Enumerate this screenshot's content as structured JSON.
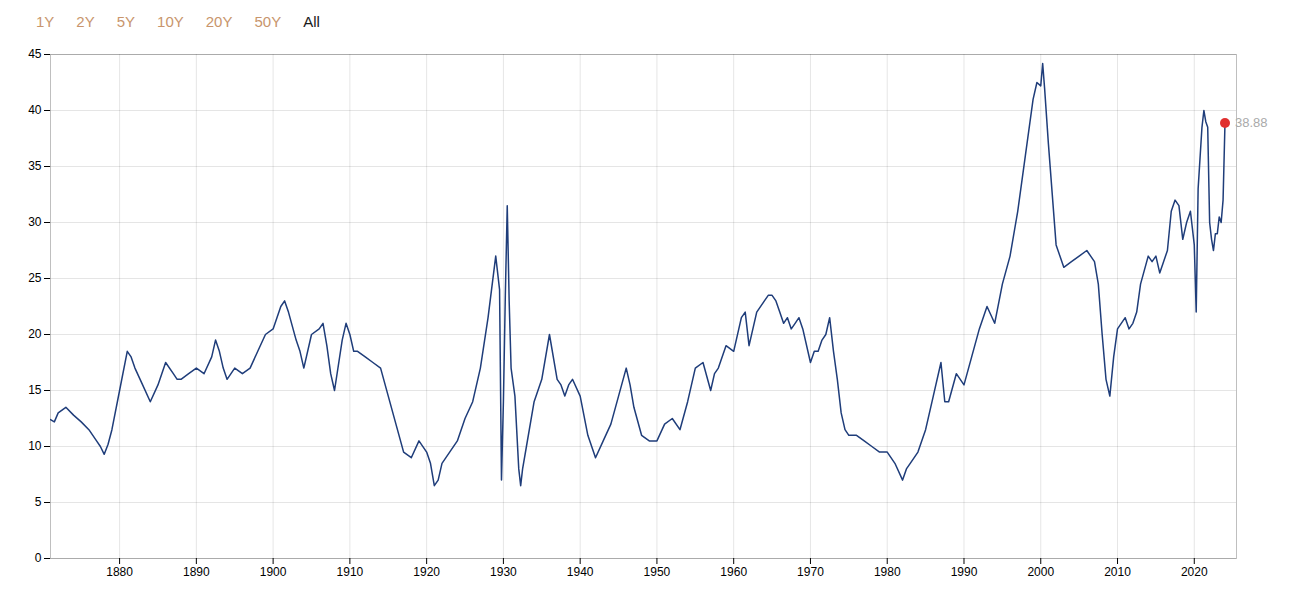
{
  "chart_data": {
    "type": "line",
    "color": "#1f3d7a",
    "xlim": [
      1871.0,
      2025.5
    ],
    "xticks": [
      1880,
      1890,
      1900,
      1910,
      1920,
      1930,
      1940,
      1950,
      1960,
      1970,
      1980,
      1990,
      2000,
      2010,
      2020
    ],
    "ylim": [
      0,
      45
    ],
    "yticks": [
      0,
      5,
      10,
      15,
      20,
      25,
      30,
      35,
      40,
      45
    ],
    "grid": true,
    "annotations": [
      {
        "text": "1Y",
        "color": "#c8956c"
      },
      {
        "text": "2Y",
        "color": "#c8956c"
      },
      {
        "text": "5Y",
        "color": "#c8956c"
      },
      {
        "text": "10Y",
        "color": "#c8956c"
      },
      {
        "text": "20Y",
        "color": "#c8956c"
      },
      {
        "text": "50Y",
        "color": "#c8956c"
      },
      {
        "text": "All",
        "color": "#1a1a1a"
      },
      {
        "text": "38.88",
        "x": 2024.0,
        "y": 38.88,
        "color": "#aaaaaa",
        "marker_color": "#e03030"
      }
    ],
    "x": [
      1871.0,
      1871.5,
      1872.0,
      1873.0,
      1874.0,
      1875.0,
      1876.0,
      1877.0,
      1877.5,
      1878.0,
      1878.5,
      1879.0,
      1880.0,
      1881.0,
      1881.5,
      1882.0,
      1883.0,
      1884.0,
      1885.0,
      1886.0,
      1887.0,
      1887.5,
      1888.0,
      1889.0,
      1890.0,
      1891.0,
      1892.0,
      1892.5,
      1893.0,
      1893.5,
      1894.0,
      1895.0,
      1896.0,
      1897.0,
      1898.0,
      1899.0,
      1900.0,
      1901.0,
      1901.5,
      1902.0,
      1903.0,
      1903.5,
      1904.0,
      1905.0,
      1906.0,
      1906.5,
      1907.0,
      1907.5,
      1908.0,
      1909.0,
      1909.5,
      1910.0,
      1910.5,
      1911.0,
      1912.0,
      1913.0,
      1914.0,
      1915.0,
      1916.0,
      1917.0,
      1918.0,
      1919.0,
      1920.0,
      1920.5,
      1921.0,
      1921.5,
      1922.0,
      1923.0,
      1924.0,
      1925.0,
      1926.0,
      1927.0,
      1928.0,
      1929.0,
      1929.5,
      1929.75,
      1930.0,
      1930.25,
      1930.5,
      1930.75,
      1931.0,
      1931.5,
      1932.0,
      1932.25,
      1932.5,
      1933.0,
      1934.0,
      1935.0,
      1936.0,
      1937.0,
      1937.5,
      1938.0,
      1938.5,
      1939.0,
      1940.0,
      1941.0,
      1942.0,
      1943.0,
      1944.0,
      1945.0,
      1946.0,
      1946.5,
      1947.0,
      1948.0,
      1949.0,
      1950.0,
      1951.0,
      1952.0,
      1953.0,
      1954.0,
      1955.0,
      1956.0,
      1957.0,
      1957.5,
      1958.0,
      1959.0,
      1960.0,
      1961.0,
      1961.5,
      1962.0,
      1963.0,
      1964.0,
      1964.5,
      1965.0,
      1965.5,
      1966.0,
      1966.5,
      1967.0,
      1967.5,
      1968.0,
      1968.5,
      1969.0,
      1970.0,
      1970.5,
      1971.0,
      1971.5,
      1972.0,
      1972.5,
      1973.0,
      1973.5,
      1974.0,
      1974.5,
      1975.0,
      1975.5,
      1976.0,
      1977.0,
      1978.0,
      1979.0,
      1979.5,
      1980.0,
      1981.0,
      1982.0,
      1982.5,
      1983.0,
      1984.0,
      1985.0,
      1986.0,
      1987.0,
      1987.5,
      1988.0,
      1989.0,
      1990.0,
      1991.0,
      1992.0,
      1993.0,
      1994.0,
      1995.0,
      1996.0,
      1997.0,
      1998.0,
      1999.0,
      1999.5,
      2000.0,
      2000.25,
      2000.5,
      2001.0,
      2002.0,
      2003.0,
      2004.0,
      2005.0,
      2006.0,
      2007.0,
      2007.5,
      2008.0,
      2008.5,
      2009.0,
      2009.5,
      2010.0,
      2011.0,
      2011.5,
      2012.0,
      2012.5,
      2013.0,
      2014.0,
      2014.5,
      2015.0,
      2015.5,
      2016.0,
      2016.5,
      2017.0,
      2017.5,
      2018.0,
      2018.5,
      2019.0,
      2019.5,
      2020.0,
      2020.25,
      2020.5,
      2021.0,
      2021.25,
      2021.5,
      2021.75,
      2022.0,
      2022.25,
      2022.5,
      2022.75,
      2023.0,
      2023.25,
      2023.5,
      2023.75,
      2024.0
    ],
    "values": [
      12.4,
      12.2,
      13.0,
      13.5,
      12.8,
      12.2,
      11.5,
      10.5,
      10.0,
      9.3,
      10.2,
      11.5,
      15.0,
      18.5,
      18.0,
      17.0,
      15.5,
      14.0,
      15.5,
      17.5,
      16.5,
      16.0,
      16.0,
      16.5,
      17.0,
      16.5,
      18.0,
      19.5,
      18.5,
      17.0,
      16.0,
      17.0,
      16.5,
      17.0,
      18.5,
      20.0,
      20.5,
      22.5,
      23.0,
      22.0,
      19.5,
      18.5,
      17.0,
      20.0,
      20.5,
      21.0,
      19.0,
      16.5,
      15.0,
      19.5,
      21.0,
      20.0,
      18.5,
      18.5,
      18.0,
      17.5,
      17.0,
      14.5,
      12.0,
      9.5,
      9.0,
      10.5,
      9.5,
      8.5,
      6.5,
      7.0,
      8.5,
      9.5,
      10.5,
      12.5,
      14.0,
      17.0,
      21.5,
      27.0,
      24.0,
      7.0,
      14.0,
      23.5,
      31.5,
      23.0,
      17.0,
      14.5,
      8.0,
      6.5,
      8.0,
      10.0,
      14.0,
      16.0,
      20.0,
      16.0,
      15.5,
      14.5,
      15.5,
      16.0,
      14.5,
      11.0,
      9.0,
      10.5,
      12.0,
      14.5,
      17.0,
      15.5,
      13.5,
      11.0,
      10.5,
      10.5,
      12.0,
      12.5,
      11.5,
      14.0,
      17.0,
      17.5,
      15.0,
      16.5,
      17.0,
      19.0,
      18.5,
      21.5,
      22.0,
      19.0,
      22.0,
      23.0,
      23.5,
      23.5,
      23.0,
      22.0,
      21.0,
      21.5,
      20.5,
      21.0,
      21.5,
      20.5,
      17.5,
      18.5,
      18.5,
      19.5,
      20.0,
      21.5,
      18.5,
      16.0,
      13.0,
      11.5,
      11.0,
      11.0,
      11.0,
      10.5,
      10.0,
      9.5,
      9.5,
      9.5,
      8.5,
      7.0,
      8.0,
      8.5,
      9.5,
      11.5,
      14.5,
      17.5,
      14.0,
      14.0,
      16.5,
      15.5,
      18.0,
      20.5,
      22.5,
      21.0,
      24.5,
      27.0,
      31.0,
      36.0,
      41.0,
      42.5,
      42.2,
      44.2,
      42.0,
      37.0,
      28.0,
      26.0,
      26.5,
      27.0,
      27.5,
      26.5,
      24.5,
      20.0,
      16.0,
      14.5,
      18.0,
      20.5,
      21.5,
      20.5,
      21.0,
      22.0,
      24.5,
      27.0,
      26.5,
      27.0,
      25.5,
      26.5,
      27.5,
      31.0,
      32.0,
      31.5,
      28.5,
      30.0,
      31.0,
      28.0,
      22.0,
      33.0,
      38.5,
      40.0,
      39.0,
      38.5,
      30.0,
      28.5,
      27.5,
      29.0,
      29.0,
      30.5,
      30.0,
      32.0,
      38.88
    ]
  }
}
